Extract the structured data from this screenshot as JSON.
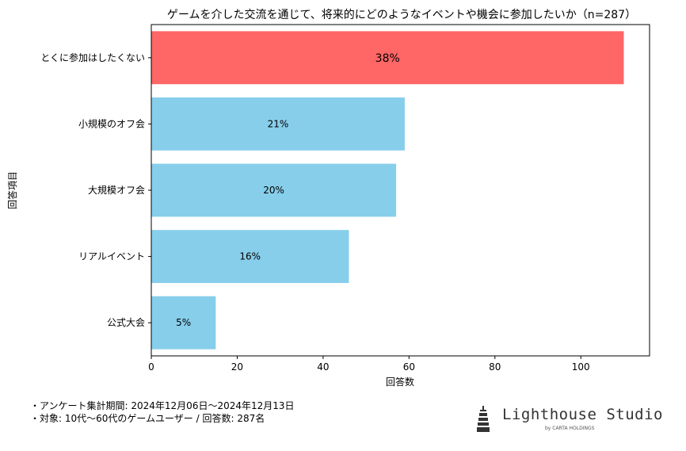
{
  "chart_data": {
    "type": "bar",
    "orientation": "horizontal",
    "title": "ゲームを介した交流を通じて、将来的にどのようなイベントや機会に参加したいか（n=287）",
    "xlabel": "回答数",
    "ylabel": "回答項目",
    "categories": [
      "とくに参加はしたくない",
      "小規模のオフ会",
      "大規模オフ会",
      "リアルイベント",
      "公式大会"
    ],
    "values": [
      110,
      59,
      57,
      46,
      15
    ],
    "data_labels": [
      "38%",
      "21%",
      "20%",
      "16%",
      "5%"
    ],
    "xlim": [
      0,
      116
    ],
    "xticks": [
      0,
      20,
      40,
      60,
      80,
      100
    ],
    "grid": false,
    "colors": {
      "highlight": "#ff6666",
      "default": "#87ceeb"
    }
  },
  "notes": [
    "・アンケート集計期間: 2024年12月06日〜2024年12月13日",
    "・対象: 10代〜60代のゲームユーザー / 回答数: 287名"
  ],
  "logo": {
    "name": "Lighthouse Studio",
    "sub": "by CARTA HOLDINGS",
    "icon": "lighthouse-icon"
  }
}
